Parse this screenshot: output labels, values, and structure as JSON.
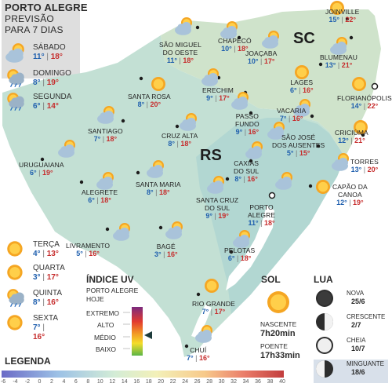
{
  "header": {
    "title": "PORTO ALEGRE",
    "subtitle1": "PREVISÃO",
    "subtitle2": "PARA 7 DIAS"
  },
  "forecast": [
    {
      "day": "SÁBADO",
      "min": "11°",
      "max": "18°",
      "icon": "cloud-sun-icon"
    },
    {
      "day": "DOMINGO",
      "min": "8°",
      "max": "19°",
      "icon": "sun-cloud-rain-icon"
    },
    {
      "day": "SEGUNDA",
      "min": "6°",
      "max": "14°",
      "icon": "sun-cloud-rain-icon"
    },
    {
      "day": "TERÇA",
      "min": "4°",
      "max": "13°",
      "icon": "sun-icon"
    },
    {
      "day": "QUARTA",
      "min": "3°",
      "max": "17°",
      "icon": "sun-icon"
    },
    {
      "day": "QUINTA",
      "min": "8°",
      "max": "16°",
      "icon": "sun-cloud-rain-icon"
    },
    {
      "day": "SEXTA",
      "min": "7°",
      "max": "16°",
      "icon": "sun-icon"
    }
  ],
  "states": {
    "rs": "RS",
    "sc": "SC"
  },
  "cities": [
    {
      "name": "JOINVILLE",
      "min": "15°",
      "max": "22°"
    },
    {
      "name": "SÃO MIGUEL",
      "name2": "DO OESTE",
      "min": "11°",
      "max": "18°"
    },
    {
      "name": "CHAPECÓ",
      "min": "10°",
      "max": "18°"
    },
    {
      "name": "JOAÇABA",
      "min": "10°",
      "max": "17°"
    },
    {
      "name": "BLUMENAU",
      "min": "13°",
      "max": "21°"
    },
    {
      "name": "LAGES",
      "min": "6°",
      "max": "16°"
    },
    {
      "name": "FLORIANÓPOLIS",
      "min": "14°",
      "max": "22°"
    },
    {
      "name": "ERECHIM",
      "min": "9°",
      "max": "17°"
    },
    {
      "name": "SANTA ROSA",
      "min": "8°",
      "max": "20°"
    },
    {
      "name": "PASSO",
      "name2": "FUNDO",
      "min": "9°",
      "max": "16°"
    },
    {
      "name": "VACARIA",
      "min": "7°",
      "max": "16°"
    },
    {
      "name": "SÃO JOSÉ",
      "name2": "DOS AUSENTES",
      "min": "5°",
      "max": "15°"
    },
    {
      "name": "CRICIÚMA",
      "min": "12°",
      "max": "21°"
    },
    {
      "name": "SANTIAGO",
      "min": "7°",
      "max": "18°"
    },
    {
      "name": "CRUZ ALTA",
      "min": "8°",
      "max": "18°"
    },
    {
      "name": "TORRES",
      "min": "13°",
      "max": "20°"
    },
    {
      "name": "URUGUAIANA",
      "min": "6°",
      "max": "19°"
    },
    {
      "name": "CAXIAS",
      "name2": "DO SUL",
      "min": "8°",
      "max": "16°"
    },
    {
      "name": "SANTA MARIA",
      "min": "8°",
      "max": "18°"
    },
    {
      "name": "ALEGRETE",
      "min": "6°",
      "max": "18°"
    },
    {
      "name": "CAPÃO DA",
      "name2": "CANOA",
      "min": "12°",
      "max": "19°"
    },
    {
      "name": "SANTA CRUZ",
      "name2": "DO SUL",
      "min": "9°",
      "max": "19°"
    },
    {
      "name": "PORTO",
      "name2": "ALEGRE",
      "min": "11°",
      "max": "18°"
    },
    {
      "name": "LIVRAMENTO",
      "min": "5°",
      "max": "16°"
    },
    {
      "name": "BAGÉ",
      "min": "3°",
      "max": "16°"
    },
    {
      "name": "PELOTAS",
      "min": "6°",
      "max": "18°"
    },
    {
      "name": "RIO GRANDE",
      "min": "7°",
      "max": "17°"
    },
    {
      "name": "CHUÍ",
      "min": "7°",
      "max": "16°"
    }
  ],
  "uv": {
    "title": "ÍNDICE UV",
    "sub1": "PORTO ALEGRE",
    "sub2": "HOJE",
    "levels": [
      "EXTREMO",
      "ALTO",
      "MÉDIO",
      "BAIXO"
    ],
    "current": "MÉDIO"
  },
  "sun": {
    "title": "SOL",
    "rise_label": "NASCENTE",
    "rise": "7h20min",
    "set_label": "POENTE",
    "set": "17h33min"
  },
  "moon": {
    "title": "LUA",
    "phases": [
      {
        "name": "NOVA",
        "date": "25/6",
        "icon": "new-moon-icon"
      },
      {
        "name": "CRESCENTE",
        "date": "2/7",
        "icon": "first-quarter-moon-icon"
      },
      {
        "name": "CHEIA",
        "date": "10/7",
        "icon": "full-moon-icon"
      },
      {
        "name": "MINGUANTE",
        "date": "18/6",
        "icon": "last-quarter-moon-icon",
        "current": true
      }
    ]
  },
  "legend": {
    "title": "LEGENDA",
    "ticks": [
      "-6",
      "-4",
      "-2",
      "0",
      "2",
      "4",
      "6",
      "8",
      "10",
      "12",
      "14",
      "16",
      "18",
      "20",
      "22",
      "24",
      "26",
      "28",
      "30",
      "32",
      "34",
      "36",
      "38",
      "40"
    ]
  },
  "colors": {
    "min_temp": "#1f5fae",
    "max_temp": "#c62d2d",
    "panel": "#dcdcdc",
    "map_sc": "#cfe3cb",
    "map_rs_east": "#b6d9cf",
    "map_rs_west": "#c6e2d4",
    "water": "#ffffff"
  }
}
